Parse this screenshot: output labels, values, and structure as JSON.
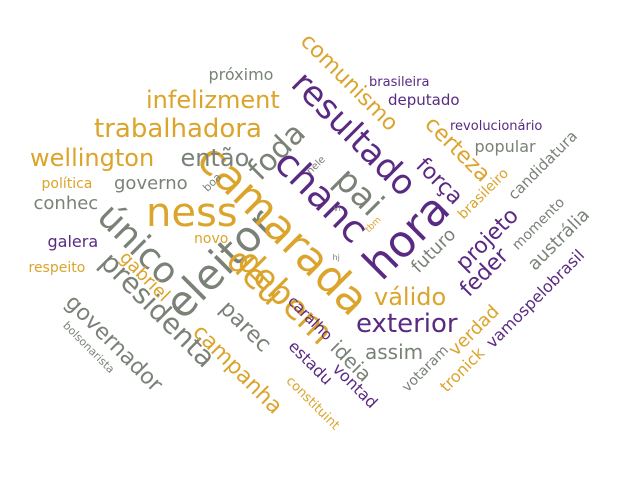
{
  "palette": {
    "gold": "#DBA42B",
    "purple": "#5A2A82",
    "gray": "#7A8278"
  },
  "words": [
    {
      "text": "ness",
      "color": "gold"
    },
    {
      "text": "eleitor",
      "color": "gray"
    },
    {
      "text": "camarada",
      "color": "gold"
    },
    {
      "text": "hora",
      "color": "purple"
    },
    {
      "text": "pai",
      "color": "gray"
    },
    {
      "text": "chanc",
      "color": "purple"
    },
    {
      "text": "único",
      "color": "gray"
    },
    {
      "text": "resultado",
      "color": "purple"
    },
    {
      "text": "deu",
      "color": "gold"
    },
    {
      "text": "debem",
      "color": "gold"
    },
    {
      "text": "foda",
      "color": "gray"
    },
    {
      "text": "trabalhadora",
      "color": "gold"
    },
    {
      "text": "presidenta",
      "color": "gray"
    },
    {
      "text": "exterior",
      "color": "purple"
    },
    {
      "text": "wellington",
      "color": "gold"
    },
    {
      "text": "então",
      "color": "gray"
    },
    {
      "text": "comunismo",
      "color": "gold"
    },
    {
      "text": "infelizment",
      "color": "gold"
    },
    {
      "text": "válido",
      "color": "gold"
    },
    {
      "text": "governador",
      "color": "gray"
    },
    {
      "text": "campanha",
      "color": "gold"
    },
    {
      "text": "parec",
      "color": "gray"
    },
    {
      "text": "força",
      "color": "purple"
    },
    {
      "text": "certeza",
      "color": "gold"
    },
    {
      "text": "projeto",
      "color": "purple"
    },
    {
      "text": "feder",
      "color": "purple"
    },
    {
      "text": "ideia",
      "color": "gray"
    },
    {
      "text": "assim",
      "color": "gray"
    },
    {
      "text": "governo",
      "color": "gray"
    },
    {
      "text": "conhec",
      "color": "gray"
    },
    {
      "text": "galera",
      "color": "purple"
    },
    {
      "text": "gabriel",
      "color": "gold"
    },
    {
      "text": "austrália",
      "color": "gray"
    },
    {
      "text": "verdad",
      "color": "gold"
    },
    {
      "text": "futuro",
      "color": "gray"
    },
    {
      "text": "vontad",
      "color": "purple"
    },
    {
      "text": "estadu",
      "color": "purple"
    },
    {
      "text": "tronick",
      "color": "gold"
    },
    {
      "text": "vamospelobrasil",
      "color": "purple"
    },
    {
      "text": "próximo",
      "color": "gray"
    },
    {
      "text": "popular",
      "color": "gray"
    },
    {
      "text": "deputado",
      "color": "purple"
    },
    {
      "text": "brasileira",
      "color": "purple"
    },
    {
      "text": "revolucionário",
      "color": "purple"
    },
    {
      "text": "candidatura",
      "color": "gray"
    },
    {
      "text": "brasileiro",
      "color": "gold"
    },
    {
      "text": "momento",
      "color": "gray"
    },
    {
      "text": "votaram",
      "color": "gray"
    },
    {
      "text": "caralho",
      "color": "purple"
    },
    {
      "text": "política",
      "color": "gold"
    },
    {
      "text": "respeito",
      "color": "gold"
    },
    {
      "text": "novo",
      "color": "gold"
    },
    {
      "text": "constituint",
      "color": "gold"
    },
    {
      "text": "bolsonarista",
      "color": "gray"
    },
    {
      "text": "boa",
      "color": "gray"
    },
    {
      "text": "nele",
      "color": "gray"
    },
    {
      "text": "tbm",
      "color": "gold"
    },
    {
      "text": "hj",
      "color": "gray"
    },
    {
      "text": "vi",
      "color": "gray"
    }
  ]
}
